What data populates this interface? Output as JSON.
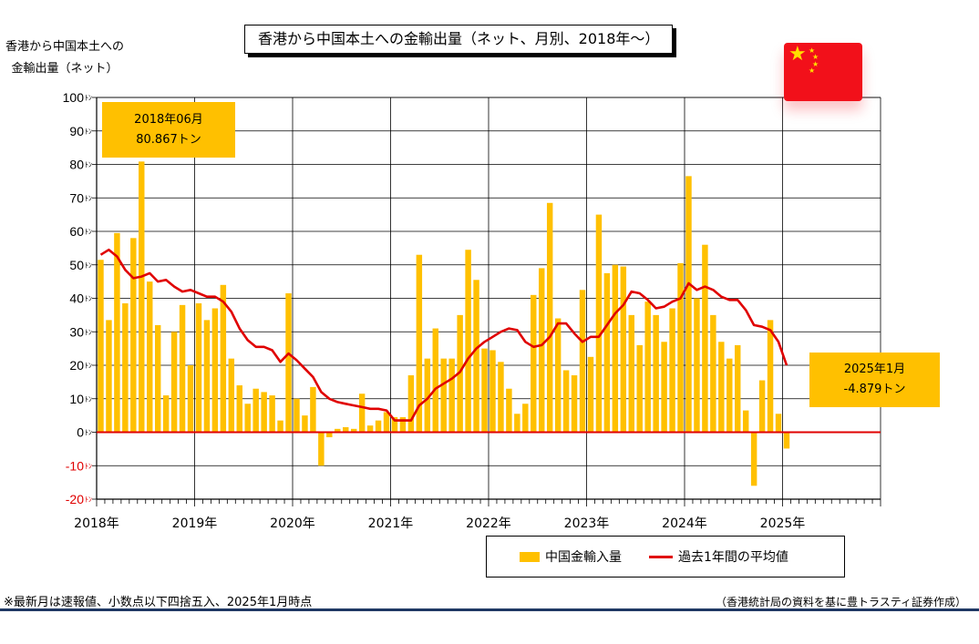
{
  "title": "香港から中国本土への金輸出量（ネット、月別、2018年～）",
  "ylabel_lines": [
    "香港から中国本土への",
    "金輸出量（ネット）"
  ],
  "legend": {
    "bar_label": "中国金輸入量",
    "line_label": "過去1年間の平均値"
  },
  "callout_peak": {
    "line1": "2018年06月",
    "line2": "80.867トン"
  },
  "callout_latest": {
    "line1": "2025年1月",
    "line2": "-4.879トン"
  },
  "footnote": "※最新月は速報値、小数点以下四捨五入、2025年1月時点",
  "source": "（香港統計局の資料を基に豊トラスティ証券作成）",
  "colors": {
    "bar": "#ffc000",
    "line": "#e00000",
    "zero_line": "#e00000",
    "negative_tick": "#e00000",
    "flag": "#f2101a",
    "star": "#ffde00"
  },
  "flag_icon": "china-flag-icon",
  "chart_data": {
    "type": "bar",
    "start_month": "2018-01",
    "months_on_axis": 96,
    "x_tick_labels": [
      "2018年",
      "2019年",
      "2020年",
      "2021年",
      "2022年",
      "2023年",
      "2024年",
      "2025年"
    ],
    "ylim": [
      -20,
      100
    ],
    "y_ticks": [
      -20,
      -10,
      0,
      10,
      20,
      30,
      40,
      50,
      60,
      70,
      80,
      90,
      100
    ],
    "y_tick_suffix": "ﾄﾝ",
    "grid": true,
    "legend_position": "bottom-right",
    "series": [
      {
        "name": "中国金輸入量",
        "type": "bar",
        "values": [
          51.5,
          33.5,
          59.5,
          38.5,
          58,
          80.867,
          45,
          32,
          11,
          30,
          38,
          20,
          38.5,
          33.5,
          37,
          44,
          22,
          14,
          8.5,
          13,
          12,
          11,
          3.5,
          41.5,
          10,
          5,
          13.5,
          -10,
          -1.5,
          1,
          1.5,
          1,
          11.5,
          2,
          3.5,
          6,
          4.5,
          4.5,
          17,
          53,
          22,
          31,
          22,
          22,
          35,
          54.5,
          45.5,
          25,
          24.5,
          21,
          13,
          5.5,
          8.5,
          41,
          49,
          68.5,
          34,
          18.5,
          17,
          42.5,
          22.5,
          65,
          47.5,
          50,
          49.5,
          35,
          26,
          39,
          35,
          27,
          37,
          50.5,
          76.5,
          40,
          56,
          35,
          27,
          22,
          26,
          6.5,
          -16,
          15.5,
          33.5,
          5.5,
          -4.879
        ]
      },
      {
        "name": "過去1年間の平均値",
        "type": "line",
        "values": [
          53,
          54.5,
          52.5,
          48.5,
          46,
          46.5,
          47.5,
          45,
          45.5,
          43.5,
          42,
          42.5,
          41.5,
          40.5,
          40.5,
          39,
          36,
          31,
          27.5,
          25.5,
          25.5,
          24.5,
          21,
          23.5,
          21.5,
          19,
          16.5,
          12,
          10,
          9,
          8.5,
          8,
          7.5,
          7,
          7,
          6.5,
          3.5,
          3.5,
          3.5,
          8,
          10,
          13,
          14.5,
          16,
          18,
          22,
          25,
          27,
          28.5,
          30,
          31,
          30.5,
          27,
          25.5,
          26,
          28.5,
          32.5,
          32.5,
          29.5,
          27,
          28.5,
          28.5,
          32,
          35.5,
          38,
          42,
          41.5,
          39.5,
          37,
          37.5,
          39,
          40,
          44.5,
          42.5,
          43.5,
          42.5,
          40.5,
          39.5,
          39.5,
          36.5,
          32,
          31.5,
          30.5,
          27,
          20
        ]
      }
    ]
  }
}
